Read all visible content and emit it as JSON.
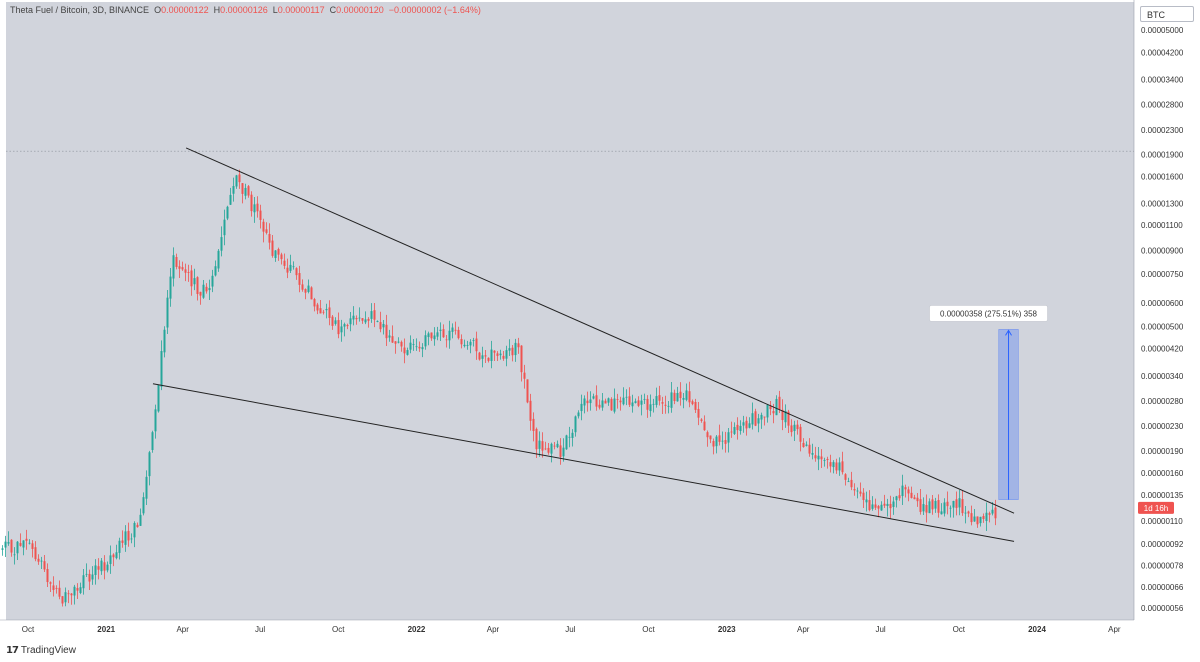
{
  "header": {
    "symbol": "Theta Fuel / Bitcoin, 3D, BINANCE",
    "o_label": "O",
    "o_value": "0.00000122",
    "h_label": "H",
    "h_value": "0.00000126",
    "l_label": "L",
    "l_value": "0.00000117",
    "c_label": "C",
    "c_value": "0.00000120",
    "change": "−0.00000002 (−1.64%)"
  },
  "currency": "BTC",
  "brand": "TradingView",
  "colors": {
    "up": "#26a69a",
    "down": "#ef5350",
    "background": "#d1d4dc",
    "projection": "#2962ff"
  },
  "chart_data": {
    "type": "candlestick",
    "y_scale": "log",
    "y_ticks": [
      "0.00005000",
      "0.00004200",
      "0.00003400",
      "0.00002800",
      "0.00002300",
      "0.00001900",
      "0.00001600",
      "0.00001300",
      "0.00001100",
      "0.00000900",
      "0.00000750",
      "0.00000600",
      "0.00000500",
      "0.00000420",
      "0.00000340",
      "0.00000280",
      "0.00000230",
      "0.00000190",
      "0.00000160",
      "0.00000135",
      "0.00000110",
      "0.00000092",
      "0.00000078",
      "0.00000066",
      "0.00000056"
    ],
    "x_ticks": [
      {
        "label": "Oct",
        "year": false
      },
      {
        "label": "2021",
        "year": true
      },
      {
        "label": "Apr",
        "year": false
      },
      {
        "label": "Jul",
        "year": false
      },
      {
        "label": "Oct",
        "year": false
      },
      {
        "label": "2022",
        "year": true
      },
      {
        "label": "Apr",
        "year": false
      },
      {
        "label": "Jul",
        "year": false
      },
      {
        "label": "Oct",
        "year": false
      },
      {
        "label": "2023",
        "year": true
      },
      {
        "label": "Apr",
        "year": false
      },
      {
        "label": "Jul",
        "year": false
      },
      {
        "label": "Oct",
        "year": false
      },
      {
        "label": "2024",
        "year": true
      },
      {
        "label": "Apr",
        "year": false
      }
    ],
    "price_path": [
      {
        "date": "2020-09-01",
        "price": 8.8e-07
      },
      {
        "date": "2020-10-01",
        "price": 9.2e-07
      },
      {
        "date": "2020-11-10",
        "price": 6e-07
      },
      {
        "date": "2020-12-05",
        "price": 6.8e-07
      },
      {
        "date": "2021-01-01",
        "price": 8e-07
      },
      {
        "date": "2021-02-10",
        "price": 1.1e-06
      },
      {
        "date": "2021-03-01",
        "price": 2.9e-06
      },
      {
        "date": "2021-03-20",
        "price": 8.8e-06
      },
      {
        "date": "2021-04-10",
        "price": 7e-06
      },
      {
        "date": "2021-05-01",
        "price": 6.5e-06
      },
      {
        "date": "2021-06-01",
        "price": 1.6e-05
      },
      {
        "date": "2021-06-20",
        "price": 1.3e-05
      },
      {
        "date": "2021-07-15",
        "price": 9e-06
      },
      {
        "date": "2021-08-20",
        "price": 7e-06
      },
      {
        "date": "2021-10-01",
        "price": 4.8e-06
      },
      {
        "date": "2021-11-01",
        "price": 5.6e-06
      },
      {
        "date": "2021-12-15",
        "price": 4.2e-06
      },
      {
        "date": "2022-02-15",
        "price": 4.8e-06
      },
      {
        "date": "2022-03-20",
        "price": 4e-06
      },
      {
        "date": "2022-05-01",
        "price": 4.2e-06
      },
      {
        "date": "2022-05-20",
        "price": 2e-06
      },
      {
        "date": "2022-06-20",
        "price": 1.9e-06
      },
      {
        "date": "2022-07-20",
        "price": 2.8e-06
      },
      {
        "date": "2022-10-01",
        "price": 2.7e-06
      },
      {
        "date": "2022-11-15",
        "price": 2.9e-06
      },
      {
        "date": "2022-12-20",
        "price": 2e-06
      },
      {
        "date": "2023-02-10",
        "price": 2.5e-06
      },
      {
        "date": "2023-03-01",
        "price": 2.7e-06
      },
      {
        "date": "2023-04-10",
        "price": 1.9e-06
      },
      {
        "date": "2023-05-20",
        "price": 1.6e-06
      },
      {
        "date": "2023-06-25",
        "price": 1.15e-06
      },
      {
        "date": "2023-07-25",
        "price": 1.4e-06
      },
      {
        "date": "2023-08-20",
        "price": 1.2e-06
      },
      {
        "date": "2023-10-01",
        "price": 1.25e-06
      },
      {
        "date": "2023-10-25",
        "price": 1.08e-06
      },
      {
        "date": "2023-11-15",
        "price": 1.2e-06
      }
    ],
    "reference_line": {
      "price": 1.95e-05
    },
    "trendlines": [
      {
        "from": {
          "date": "2021-04-05",
          "price": 2e-05
        },
        "to": {
          "date": "2023-12-05",
          "price": 1.17e-06
        }
      },
      {
        "from": {
          "date": "2021-02-25",
          "price": 3.2e-06
        },
        "to": {
          "date": "2023-12-05",
          "price": 9.4e-07
        }
      }
    ],
    "projection": {
      "from": {
        "date": "2023-11-17",
        "price": 1.3e-06
      },
      "to": {
        "date": "2023-12-10",
        "price": 4.88e-06
      },
      "label": "0.00000358 (275.51%) 358"
    },
    "last_price_label": "1d 16h"
  }
}
